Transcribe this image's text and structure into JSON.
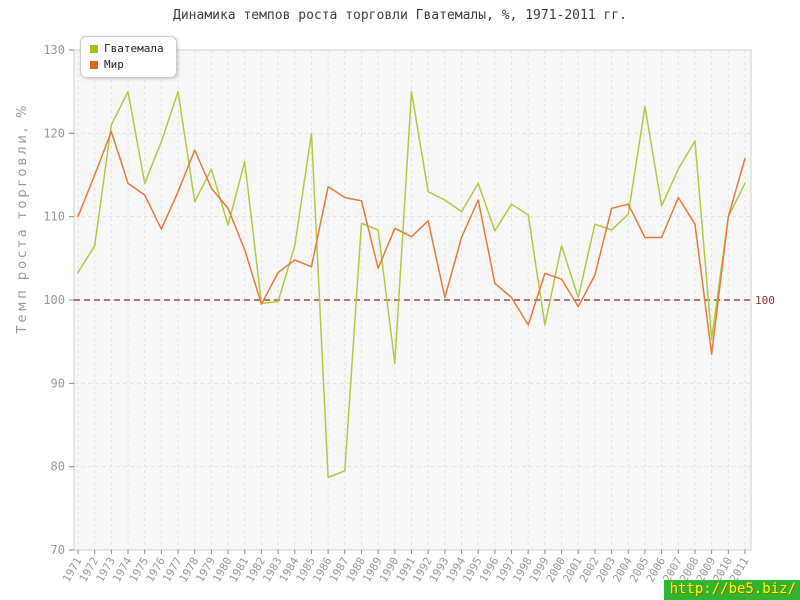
{
  "title": "Динамика темпов роста торговли Гватемалы, %, 1971-2011 гг.",
  "watermark": "http://be5.biz/",
  "legend": {
    "items": [
      {
        "label": "Гватемала",
        "color": "#a3c21d"
      },
      {
        "label": "Мир",
        "color": "#e0661f"
      }
    ]
  },
  "colors": {
    "guatemala_line": "#aecb44",
    "world_line": "#e57a3c",
    "reference_line": "#8e2a2a",
    "panel_fill": "#f7f7f7",
    "panel_border": "#cfcfcf",
    "gridline": "#e2e2e2",
    "tick": "#8a8a8a",
    "tick_text": "#999999",
    "watermark_bg": "#2fb52f",
    "watermark_text": "#ffff00"
  },
  "chart_data": {
    "type": "line",
    "title": "Динамика темпов роста торговли Гватемалы, %, 1971-2011 гг.",
    "xlabel": "",
    "ylabel": "Темп роста торговли, %",
    "ylim": [
      70,
      130
    ],
    "yticks": [
      70,
      80,
      90,
      100,
      110,
      120,
      130
    ],
    "grid": true,
    "legend_position": "top-left",
    "reference_line": {
      "value": 100,
      "label": "100",
      "style": "dashed",
      "color": "#8e2a2a"
    },
    "x": [
      1971,
      1972,
      1973,
      1974,
      1975,
      1976,
      1977,
      1978,
      1979,
      1980,
      1981,
      1982,
      1983,
      1984,
      1985,
      1986,
      1987,
      1988,
      1989,
      1990,
      1991,
      1992,
      1993,
      1994,
      1995,
      1996,
      1997,
      1998,
      1999,
      2000,
      2001,
      2002,
      2003,
      2004,
      2005,
      2006,
      2007,
      2008,
      2009,
      2010,
      2011
    ],
    "series": [
      {
        "name": "Гватемала",
        "key": "guatemala",
        "color": "#aecb44",
        "values": [
          103.3,
          106.5,
          121,
          125,
          114,
          119,
          125,
          111.8,
          115.7,
          109,
          116.6,
          99.6,
          99.8,
          106.5,
          120,
          78.7,
          79.5,
          109.2,
          108.4,
          92.4,
          125,
          113,
          112,
          110.6,
          114,
          108.3,
          111.5,
          110.2,
          97,
          106.5,
          100.3,
          109.1,
          108.4,
          110.3,
          123.2,
          111.3,
          115.7,
          119.1,
          95.3,
          110,
          114
        ]
      },
      {
        "name": "Мир",
        "key": "world",
        "color": "#e57a3c",
        "values": [
          110,
          115,
          120.2,
          114,
          112.6,
          108.5,
          113,
          118,
          113.4,
          111,
          106,
          99.5,
          103.3,
          104.8,
          104,
          113.6,
          112.3,
          111.9,
          103.8,
          108.6,
          107.6,
          109.5,
          100.3,
          107.5,
          112,
          102,
          100.3,
          97,
          103.2,
          102.5,
          99.2,
          103,
          111,
          111.5,
          107.5,
          107.5,
          112.3,
          109.1,
          93.5,
          110,
          117
        ]
      }
    ]
  }
}
